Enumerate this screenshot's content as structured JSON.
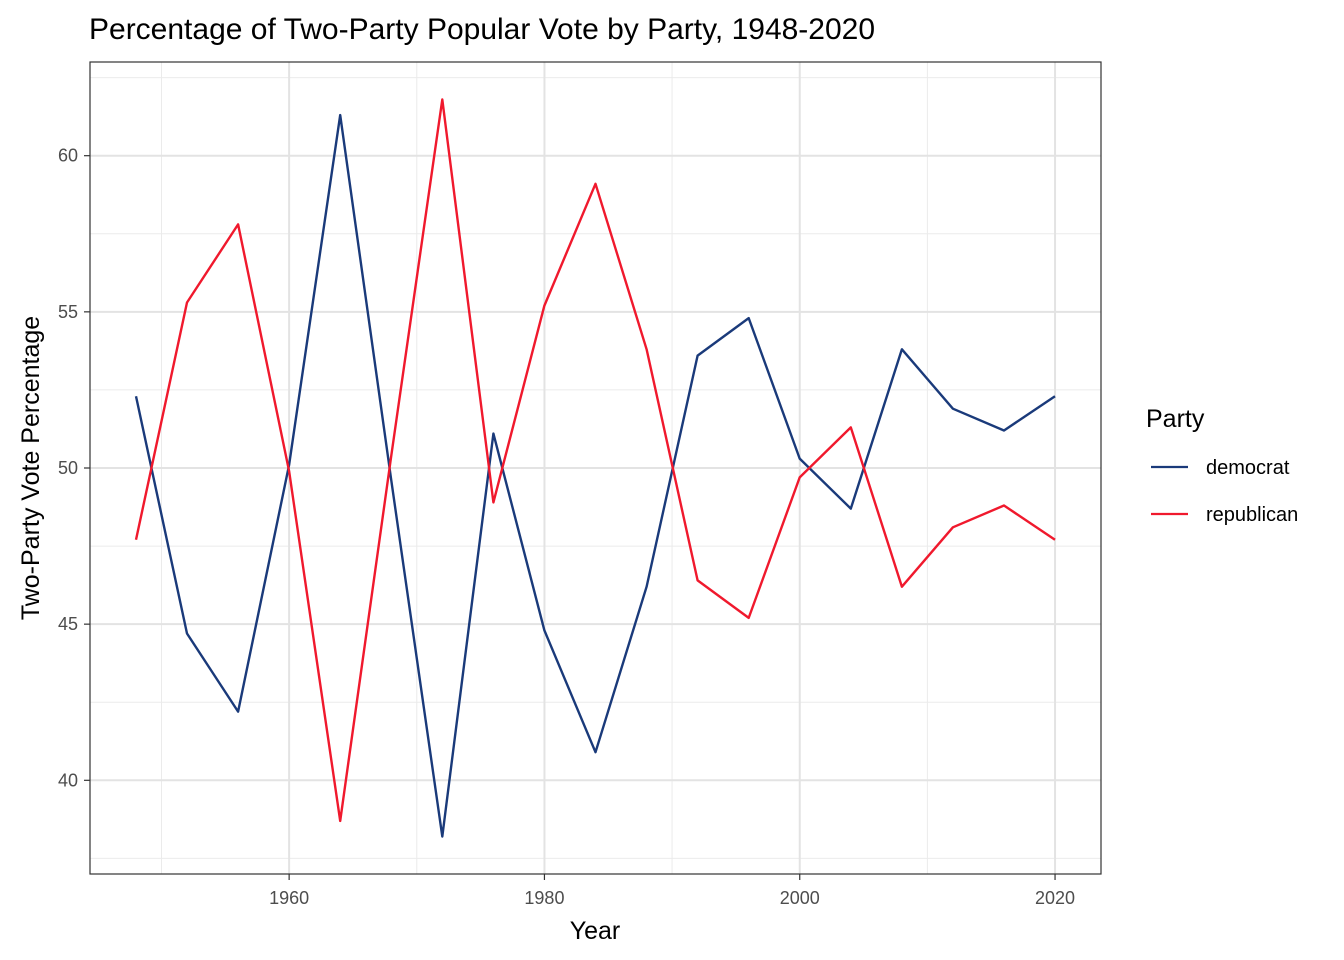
{
  "chart_data": {
    "type": "line",
    "title": "Percentage of Two-Party Popular Vote by Party, 1948-2020",
    "xlabel": "Year",
    "ylabel": "Two-Party Vote Percentage",
    "xlim": [
      1944.4,
      2023.6
    ],
    "ylim": [
      37.0,
      63.0
    ],
    "x_ticks": [
      1960,
      1980,
      2000,
      2020
    ],
    "x_minor_ticks": [
      1950,
      1970,
      1990,
      2010
    ],
    "y_ticks": [
      40,
      45,
      50,
      55,
      60
    ],
    "y_minor_ticks": [
      37.5,
      42.5,
      47.5,
      52.5,
      57.5,
      62.5
    ],
    "grid": true,
    "legend": {
      "title": "Party",
      "position": "right"
    },
    "x": [
      1948,
      1952,
      1956,
      1960,
      1964,
      1968,
      1972,
      1976,
      1980,
      1984,
      1988,
      1992,
      1996,
      2000,
      2004,
      2008,
      2012,
      2016,
      2020
    ],
    "series": [
      {
        "name": "democrat",
        "color": "#1a3a7a",
        "values": [
          52.3,
          44.7,
          42.2,
          50.1,
          61.3,
          49.6,
          38.2,
          51.1,
          44.8,
          40.9,
          46.2,
          53.6,
          54.8,
          50.3,
          48.7,
          53.8,
          51.9,
          51.2,
          52.3
        ]
      },
      {
        "name": "republican",
        "color": "#f0192d",
        "values": [
          47.7,
          55.3,
          57.8,
          49.9,
          38.7,
          50.4,
          61.8,
          48.9,
          55.2,
          59.1,
          53.8,
          46.4,
          45.2,
          49.7,
          51.3,
          46.2,
          48.1,
          48.8,
          47.7
        ]
      }
    ]
  }
}
